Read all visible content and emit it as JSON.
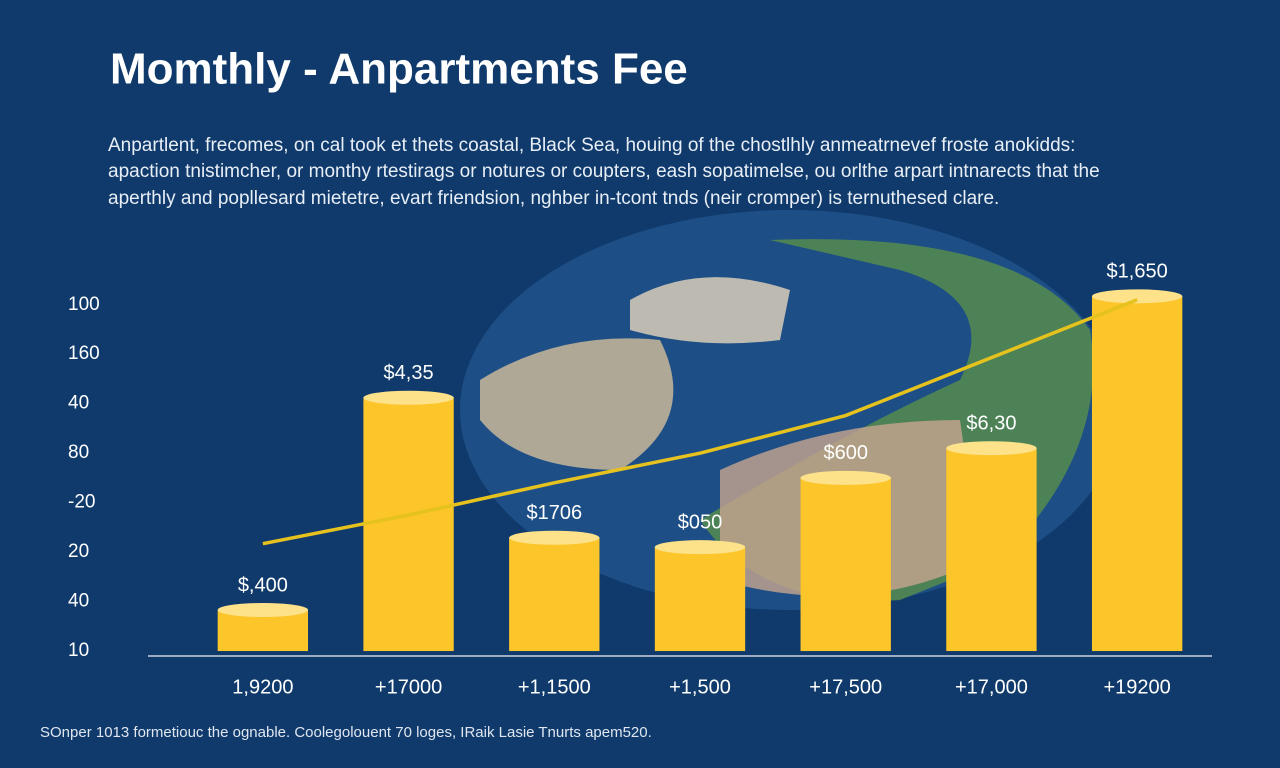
{
  "chart_data": {
    "type": "bar",
    "title": "Momthly - Anpartments Fee",
    "subtitle": [
      "Anpartlent, frecomes, on cal took et thets coastal, Black Sea, houing of the chostlhly anmeatrnevef froste anokidds:",
      "apaction tnistimcher, or monthy rtestirags or notures or coupters, eash sopatimelse, ou orlthe arpart intnarects that the",
      "aperthly and popllesard mietetre, evart friendsion, nghber in-tcont tnds (neir cromper) is ternuthesed clare."
    ],
    "categories": [
      "1,9200",
      "+17000",
      "+1,1500",
      "+1,500",
      "+17,500",
      "+17,000",
      "+19200"
    ],
    "series": [
      {
        "name": null,
        "type": "bar",
        "color": "#fcc52a",
        "values": [
          0.83,
          5.12,
          2.29,
          2.1,
          3.5,
          4.1,
          7.17
        ]
      },
      {
        "name": null,
        "type": "line",
        "color": "#e6c21e",
        "values": [
          2.17,
          2.75,
          3.4,
          4.0,
          4.76,
          5.93,
          7.1
        ]
      }
    ],
    "annotations": [
      "$,400",
      "$4,35",
      "$1706",
      "$050",
      "$600",
      "$6,30",
      "$1,650"
    ],
    "ylim": [
      -0.1,
      7.5
    ],
    "yticks": [
      {
        "value": 0,
        "label": "10"
      },
      {
        "value": 1,
        "label": "40"
      },
      {
        "value": 2,
        "label": "20"
      },
      {
        "value": 3,
        "label": "-20"
      },
      {
        "value": 4,
        "label": "80"
      },
      {
        "value": 5,
        "label": "40"
      },
      {
        "value": 6,
        "label": "160"
      },
      {
        "value": 7,
        "label": "100"
      }
    ],
    "footer": "SOnper 1013 formetiouc the ognable. Coolegolouent 70 loges, IRaik Lasie Tnurts apem520."
  }
}
